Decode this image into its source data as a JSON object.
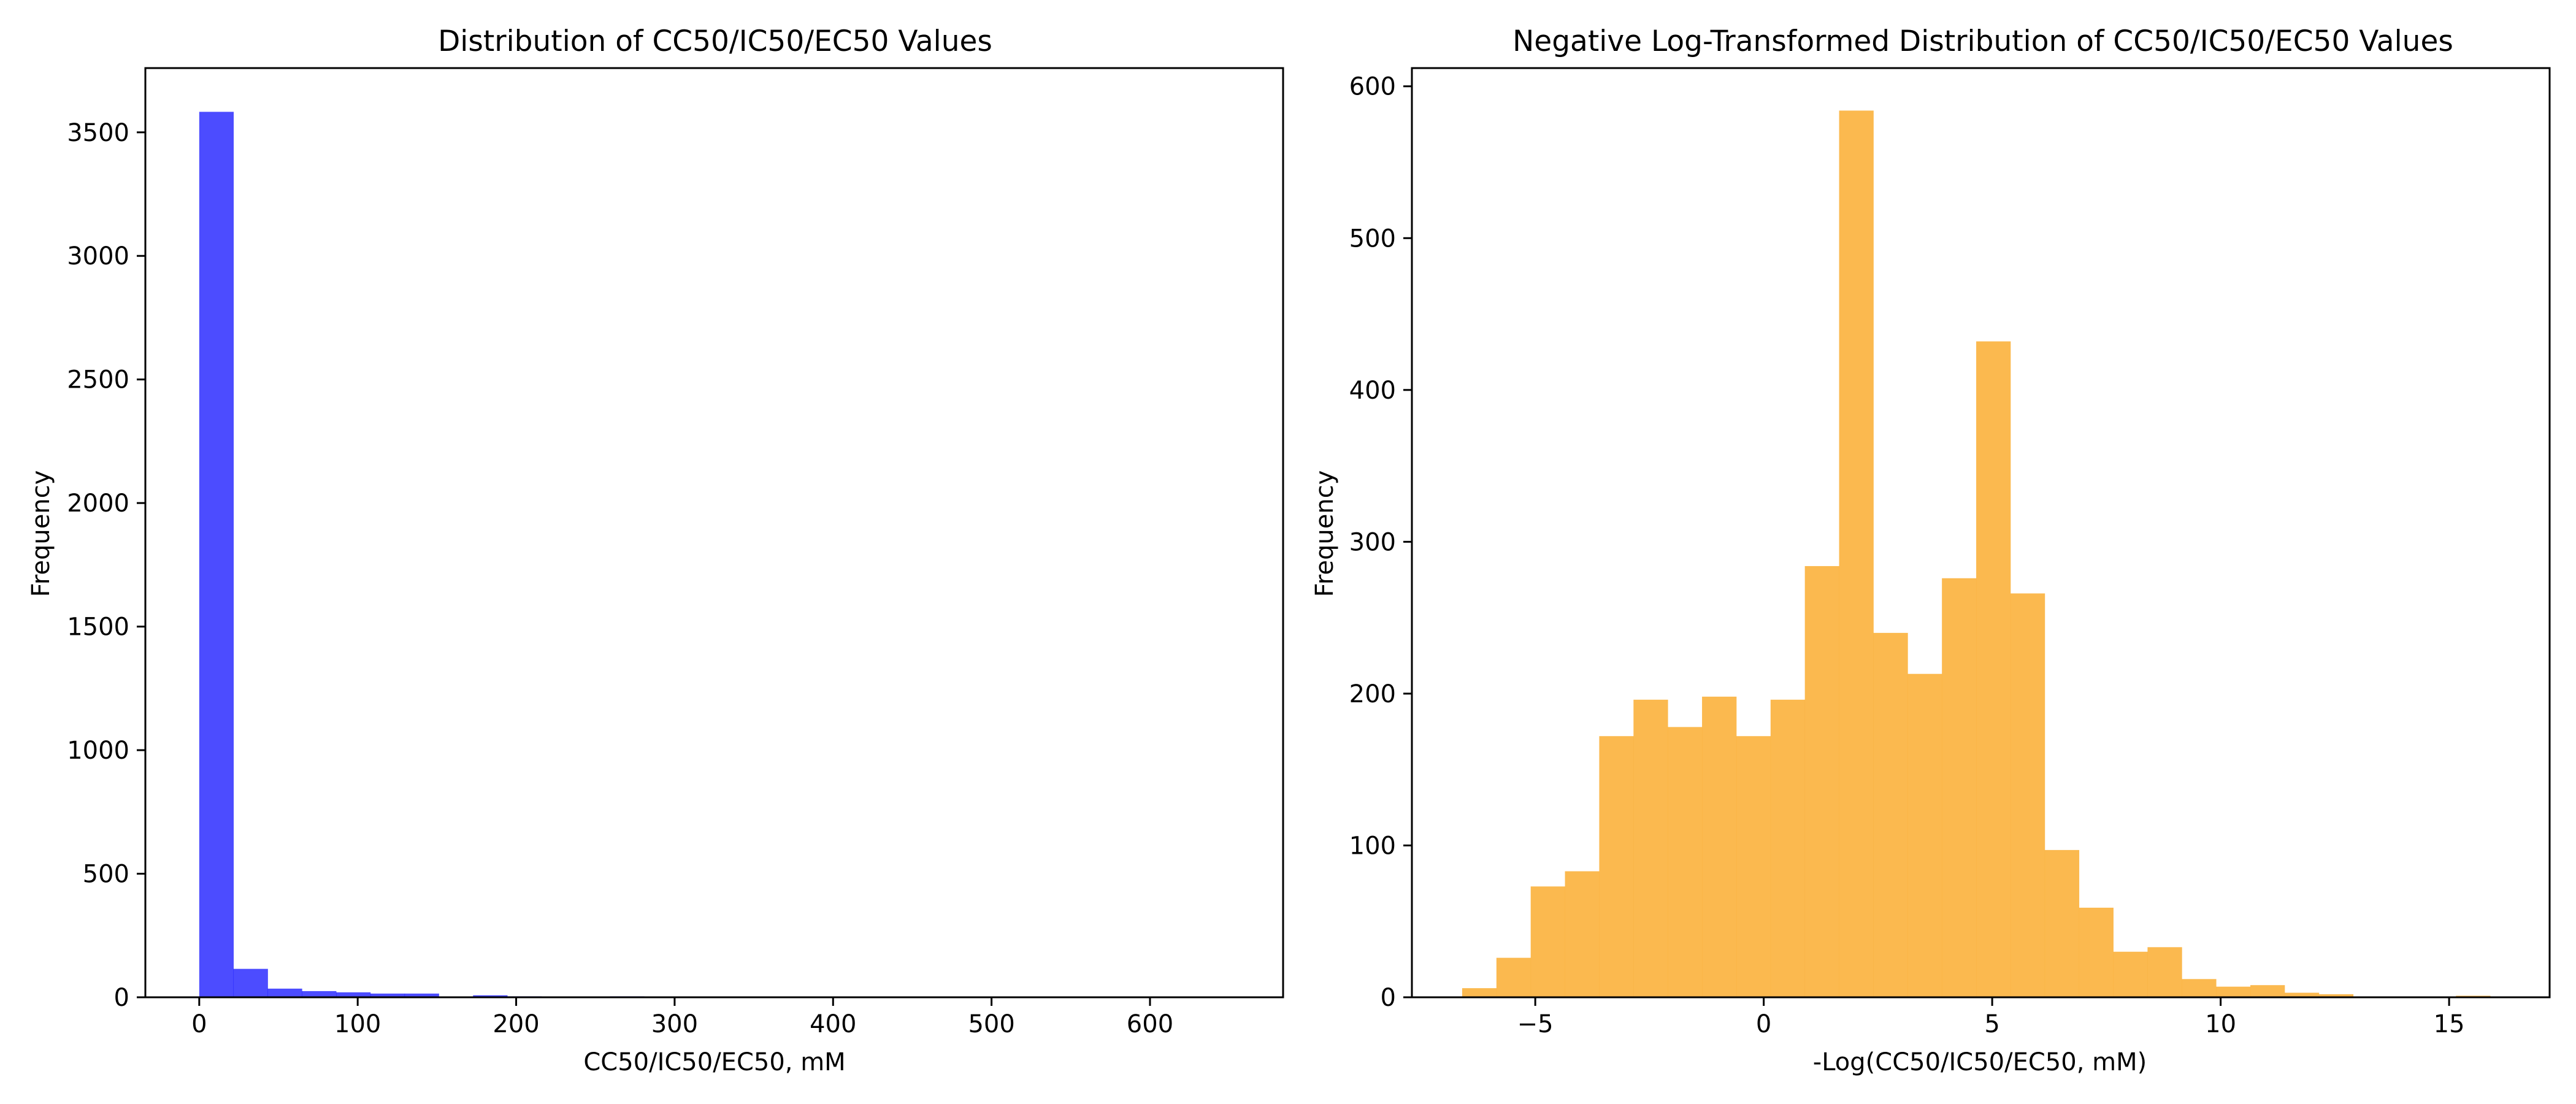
{
  "chart_data": [
    {
      "type": "bar",
      "title": "Distribution of CC50/IC50/EC50 Values",
      "xlabel": "CC50/IC50/EC50, mM",
      "ylabel": "Frequency",
      "xlim": [
        -34,
        684
      ],
      "ylim": [
        0,
        3760
      ],
      "xticks": [
        0,
        100,
        200,
        300,
        400,
        500,
        600
      ],
      "yticks": [
        0,
        500,
        1000,
        1500,
        2000,
        2500,
        3000,
        3500
      ],
      "grid": false,
      "bar_color": "#0000ff",
      "bar_opacity": 0.7,
      "bin_edges": [
        0,
        21.6,
        43.2,
        64.8,
        86.4,
        108,
        129.6,
        151.2,
        172.8,
        194.4,
        216,
        237.6,
        259.2,
        280.8,
        302.4,
        324,
        345.6,
        367.2,
        388.8,
        410.4,
        432,
        453.6,
        475.2,
        496.8,
        518.4,
        540,
        561.6,
        583.2,
        604.8,
        626.4,
        648
      ],
      "values": [
        3583,
        115,
        35,
        25,
        20,
        15,
        15,
        0,
        8,
        4,
        3,
        2,
        4,
        1,
        1,
        1,
        0,
        0,
        0,
        0,
        0,
        0,
        0,
        0,
        0,
        0,
        0,
        0,
        0,
        1
      ]
    },
    {
      "type": "bar",
      "title": "Negative Log-Transformed Distribution of CC50/IC50/EC50 Values",
      "xlabel": "-Log(CC50/IC50/EC50, mM)",
      "ylabel": "Frequency",
      "xlim": [
        -7.7,
        17.2
      ],
      "ylim": [
        0,
        612
      ],
      "xticks": [
        -5,
        0,
        5,
        10,
        15
      ],
      "xtick_labels": [
        "−5",
        "0",
        "5",
        "10",
        "15"
      ],
      "yticks": [
        0,
        100,
        200,
        300,
        400,
        500,
        600
      ],
      "grid": false,
      "bar_color": "#fbb13c",
      "bar_opacity": 0.9,
      "bin_edges": [
        -6.6,
        -5.85,
        -5.1,
        -4.35,
        -3.6,
        -2.85,
        -2.1,
        -1.35,
        -0.6,
        0.15,
        0.9,
        1.65,
        2.4,
        3.15,
        3.9,
        4.65,
        5.4,
        6.15,
        6.9,
        7.65,
        8.4,
        9.15,
        9.9,
        10.65,
        11.4,
        12.15,
        12.9,
        13.65,
        14.4,
        15.15,
        15.9
      ],
      "values": [
        6,
        26,
        73,
        83,
        172,
        196,
        178,
        198,
        172,
        196,
        284,
        584,
        240,
        213,
        276,
        432,
        266,
        97,
        59,
        30,
        33,
        12,
        7,
        8,
        3,
        2,
        0,
        0,
        0,
        1
      ]
    }
  ]
}
